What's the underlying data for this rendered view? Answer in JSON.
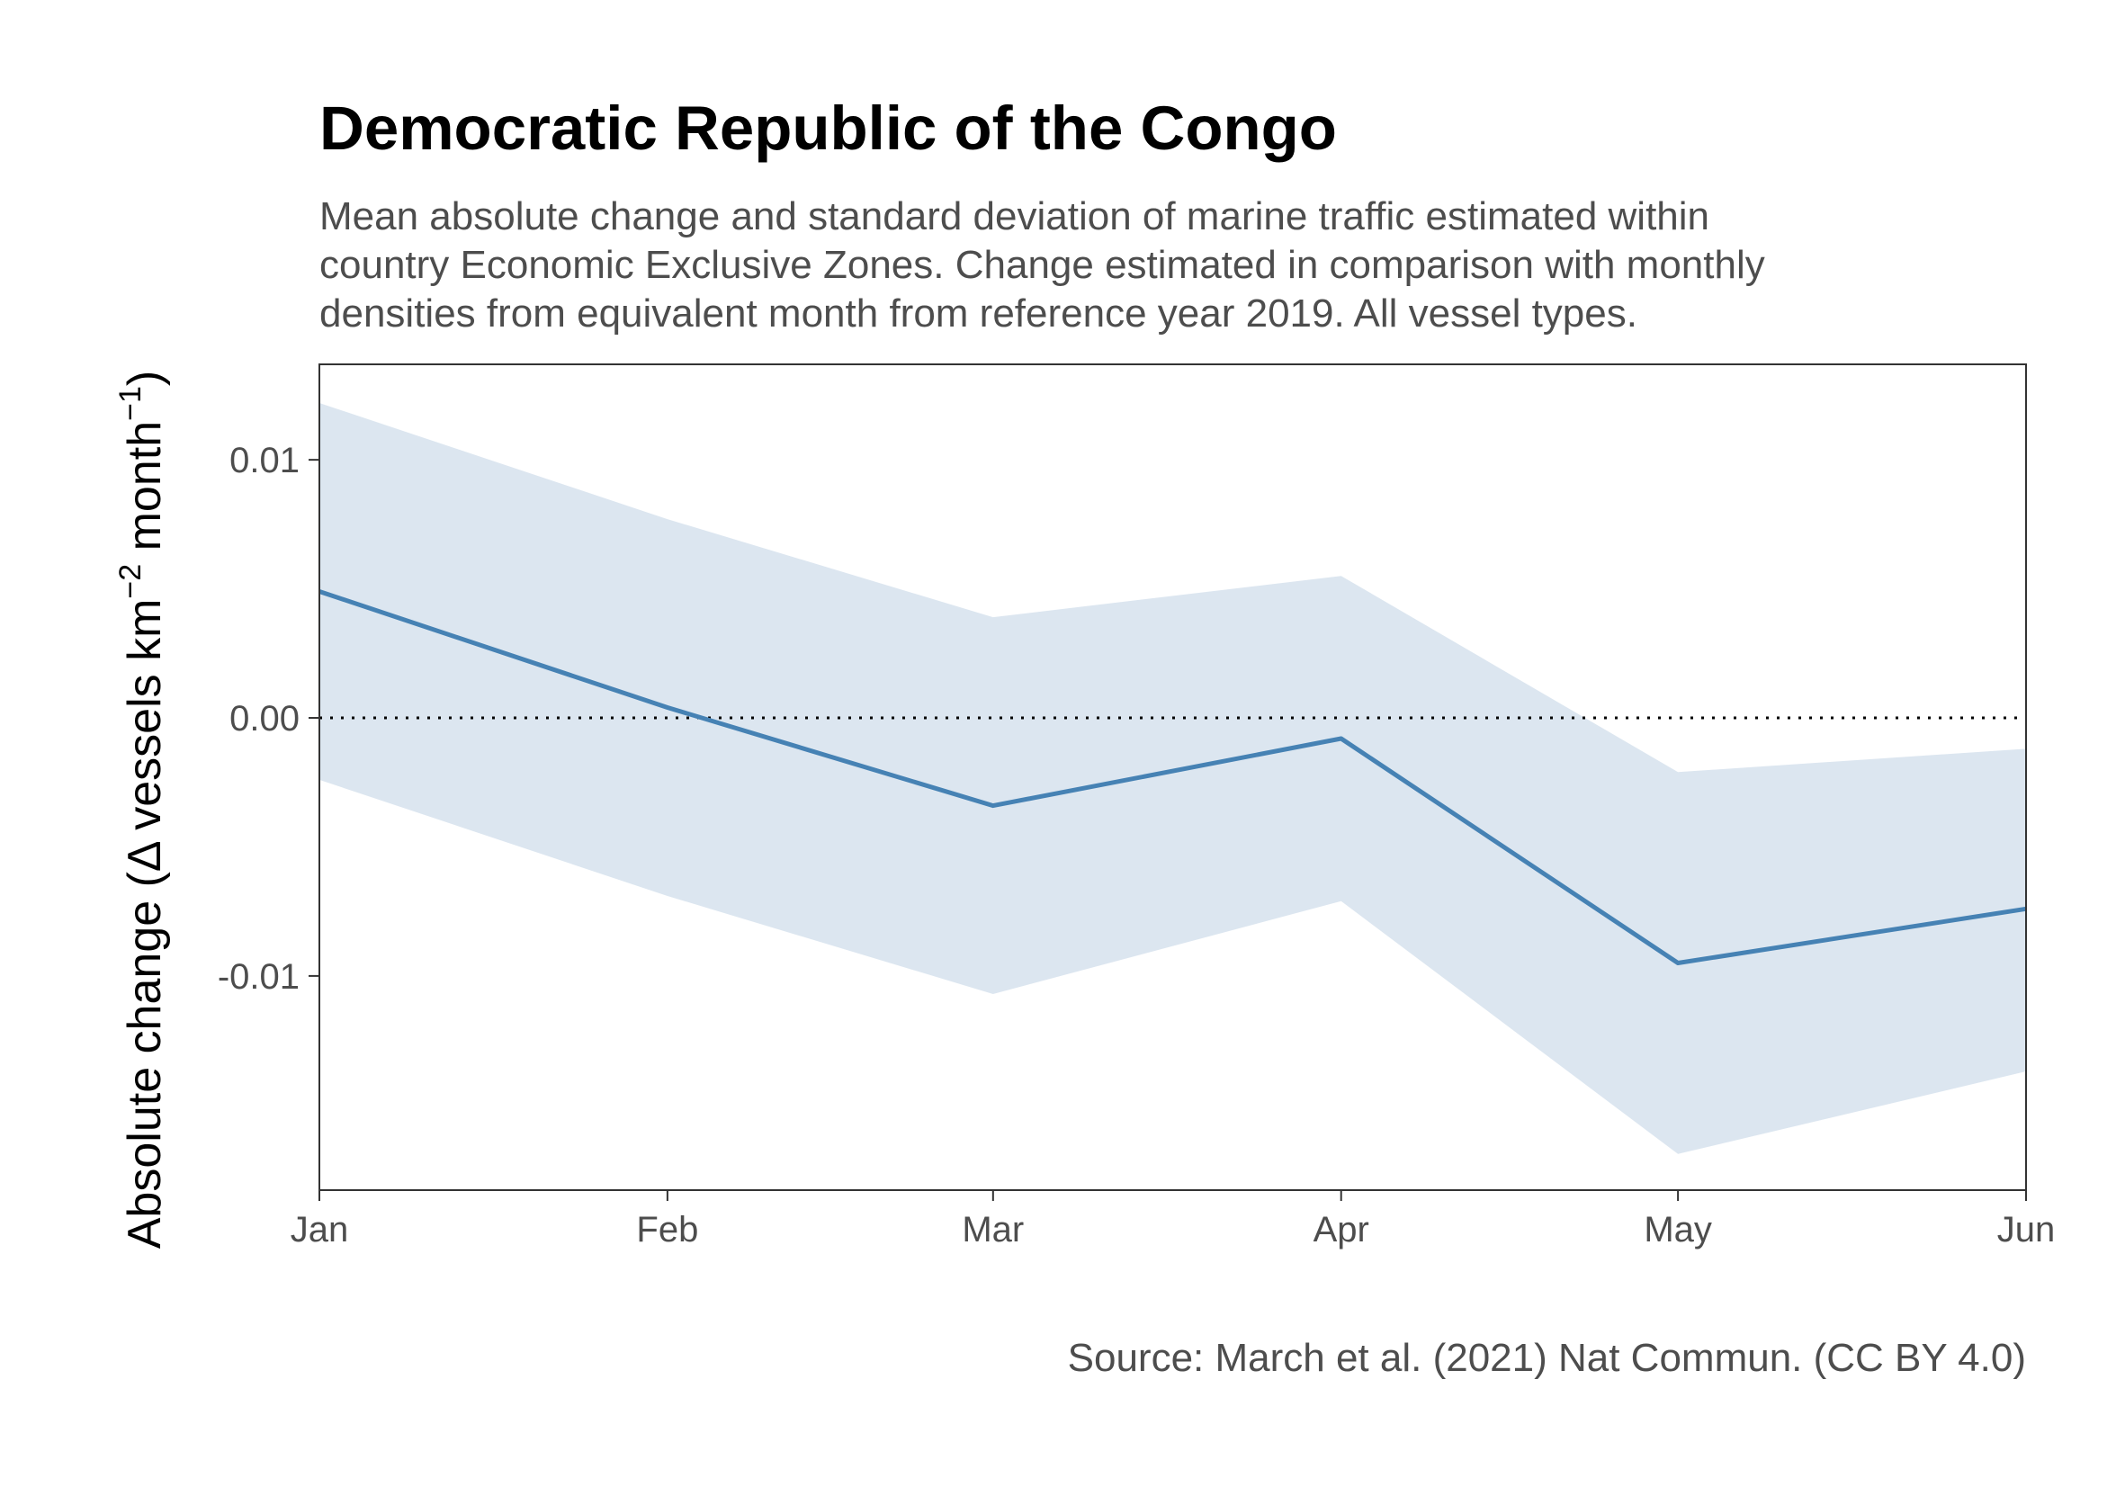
{
  "chart_data": {
    "type": "line",
    "title": "Democratic Republic of the Congo",
    "subtitle_lines": [
      "Mean absolute change and standard deviation of marine traffic estimated within",
      "country Economic Exclusive Zones. Change estimated in comparison with monthly",
      "densities from equivalent month from reference year 2019. All vessel types."
    ],
    "caption": "Source: March et al. (2021) Nat Commun. (CC BY 4.0)",
    "ylabel": {
      "pre": "Absolute change (",
      "delta": "Δ",
      "mid": " vessels km",
      "sup1": "−2",
      "mid2": " month",
      "sup2": "−1",
      "post": ")"
    },
    "xlabel": "",
    "x": [
      "2020-01-01",
      "2020-02-01",
      "2020-03-01",
      "2020-04-01",
      "2020-05-01",
      "2020-06-01"
    ],
    "x_tick_labels": [
      "Jan",
      "Feb",
      "Mar",
      "Apr",
      "May",
      "Jun"
    ],
    "series": [
      {
        "values": [
          0.0049,
          0.0004,
          -0.0034,
          -0.0008,
          -0.0095,
          -0.0074
        ],
        "ribbon_lower": [
          -0.0024,
          -0.0069,
          -0.0107,
          -0.0071,
          -0.0169,
          -0.0137
        ],
        "ribbon_upper": [
          0.0122,
          0.0077,
          0.0039,
          0.0055,
          -0.0021,
          -0.0012
        ]
      }
    ],
    "y_ticks": [
      -0.01,
      0.0,
      0.01
    ],
    "y_tick_labels": [
      "-0.01",
      "0.00",
      "0.01"
    ],
    "ylim": [
      -0.0183,
      0.0137
    ],
    "reference_line": 0,
    "grid": false,
    "colors": {
      "line": "#4682b4",
      "ribbon": "#dce6f0",
      "reference": "#000000",
      "panel_border": "#333333"
    }
  }
}
